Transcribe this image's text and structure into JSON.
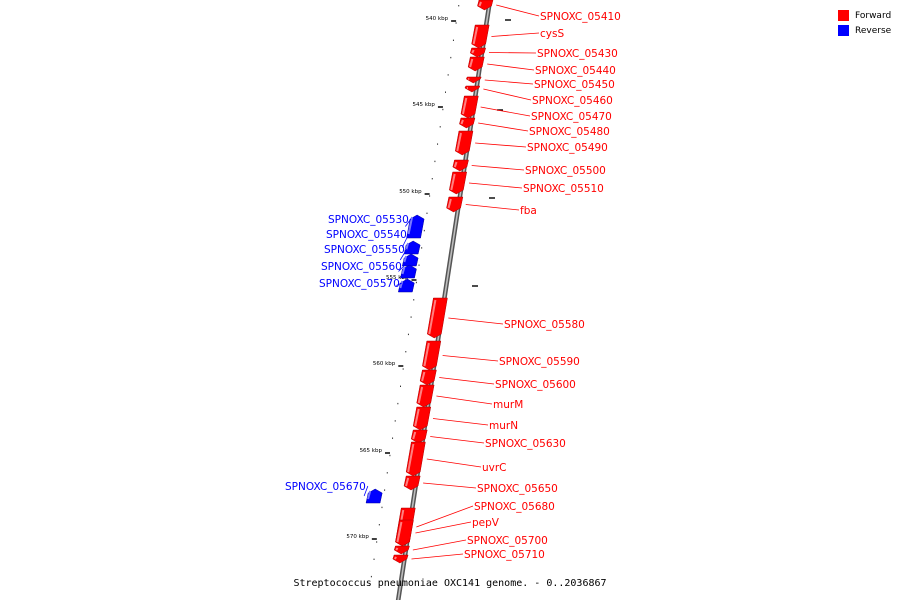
{
  "title": "Streptococcus pneumoniae OXC141 genome. - 0..2036867",
  "legend": [
    {
      "label": "Forward",
      "color": "#ff0000"
    },
    {
      "label": "Reverse",
      "color": "#0000ff"
    }
  ],
  "colors": {
    "forward": "#ff0000",
    "reverse": "#0000ff",
    "backbone": "#888888"
  },
  "scale_ticks": [
    "540 kbp",
    "545 kbp",
    "550 kbp",
    "555 kbp",
    "560 kbp",
    "565 kbp",
    "570 kbp"
  ],
  "features": [
    {
      "name": "SPNOXC_05410",
      "strand": "forward"
    },
    {
      "name": "cysS",
      "strand": "forward"
    },
    {
      "name": "SPNOXC_05430",
      "strand": "forward"
    },
    {
      "name": "SPNOXC_05440",
      "strand": "forward"
    },
    {
      "name": "SPNOXC_05450",
      "strand": "forward"
    },
    {
      "name": "SPNOXC_05460",
      "strand": "forward"
    },
    {
      "name": "SPNOXC_05470",
      "strand": "forward"
    },
    {
      "name": "SPNOXC_05480",
      "strand": "forward"
    },
    {
      "name": "SPNOXC_05490",
      "strand": "forward"
    },
    {
      "name": "SPNOXC_05500",
      "strand": "forward"
    },
    {
      "name": "SPNOXC_05510",
      "strand": "forward"
    },
    {
      "name": "fba",
      "strand": "forward"
    },
    {
      "name": "SPNOXC_05530",
      "strand": "reverse"
    },
    {
      "name": "SPNOXC_05540",
      "strand": "reverse"
    },
    {
      "name": "SPNOXC_05550",
      "strand": "reverse"
    },
    {
      "name": "SPNOXC_05560",
      "strand": "reverse"
    },
    {
      "name": "SPNOXC_05570",
      "strand": "reverse"
    },
    {
      "name": "SPNOXC_05580",
      "strand": "forward"
    },
    {
      "name": "SPNOXC_05590",
      "strand": "forward"
    },
    {
      "name": "SPNOXC_05600",
      "strand": "forward"
    },
    {
      "name": "murM",
      "strand": "forward"
    },
    {
      "name": "murN",
      "strand": "forward"
    },
    {
      "name": "SPNOXC_05630",
      "strand": "forward"
    },
    {
      "name": "uvrC",
      "strand": "forward"
    },
    {
      "name": "SPNOXC_05650",
      "strand": "forward"
    },
    {
      "name": "SPNOXC_05670",
      "strand": "reverse"
    },
    {
      "name": "SPNOXC_05680",
      "strand": "forward"
    },
    {
      "name": "pepV",
      "strand": "forward"
    },
    {
      "name": "SPNOXC_05700",
      "strand": "forward"
    },
    {
      "name": "SPNOXC_05710",
      "strand": "forward"
    }
  ]
}
